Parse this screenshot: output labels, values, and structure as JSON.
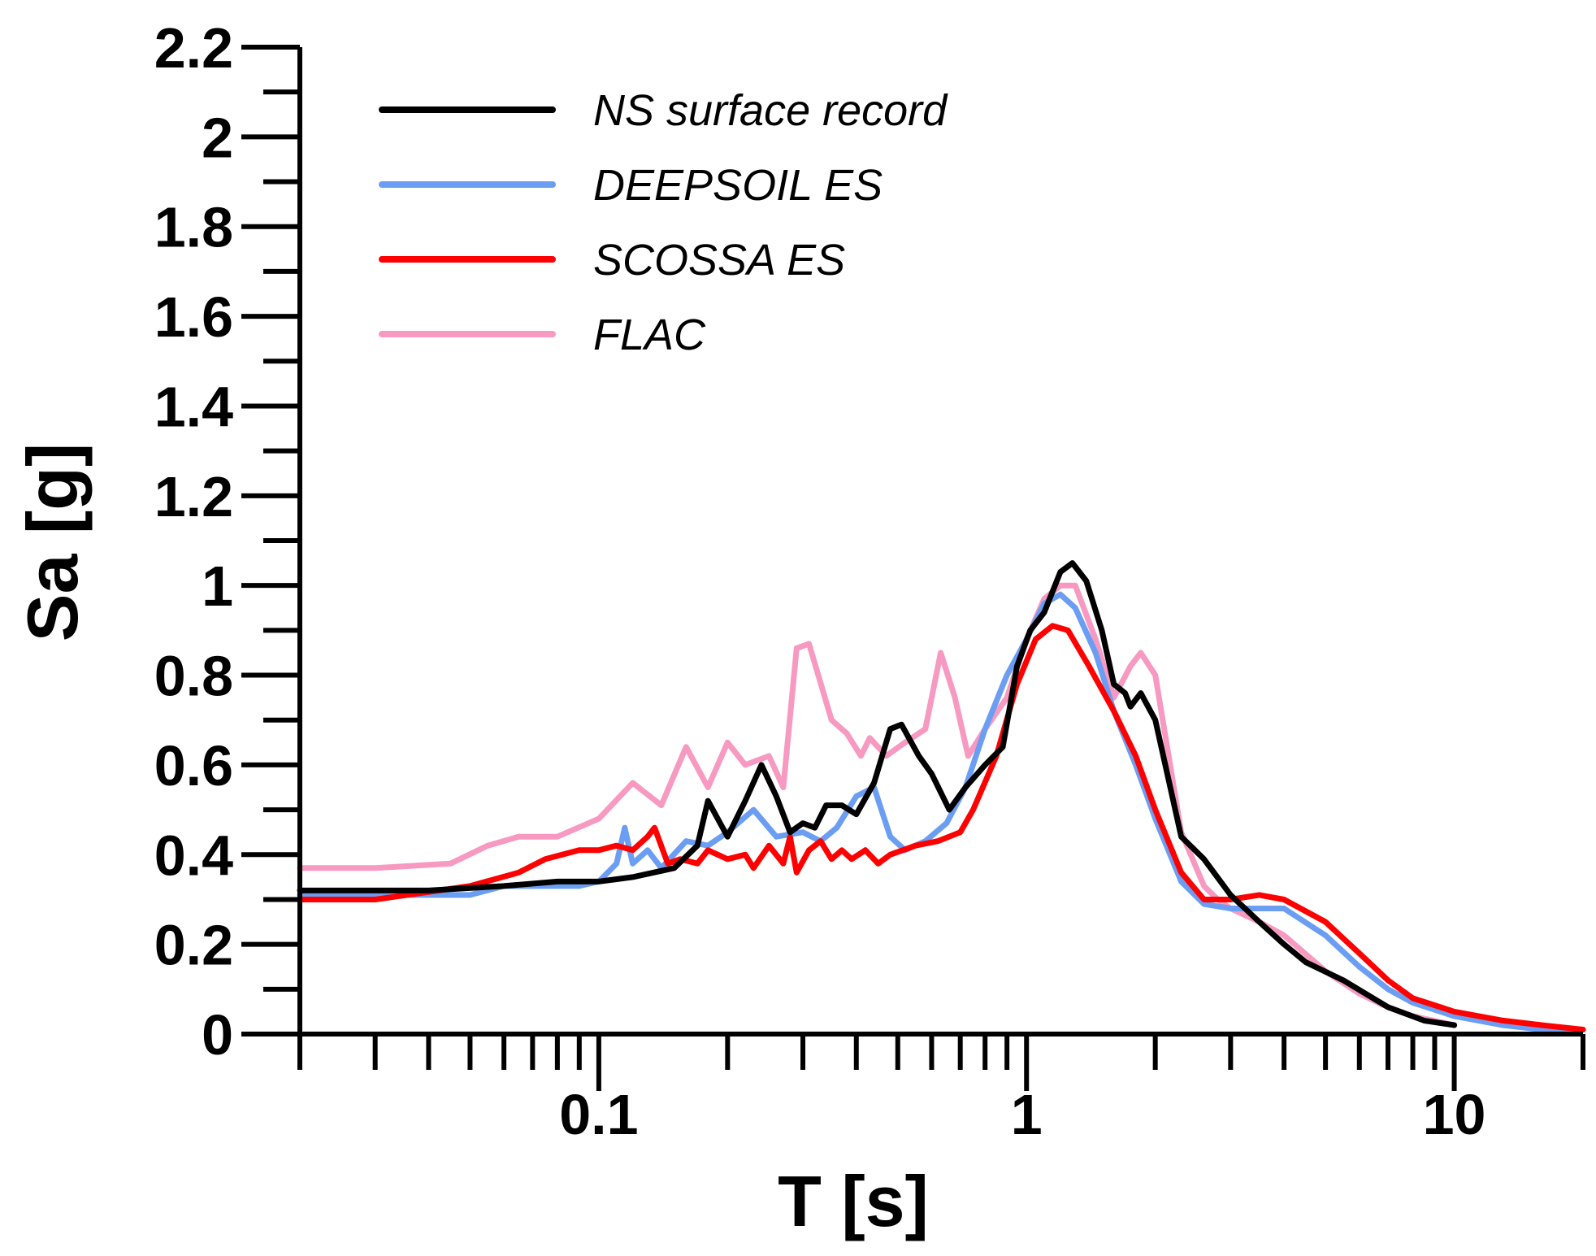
{
  "chart_data": {
    "type": "line",
    "title": "",
    "xlabel": "T [s]",
    "ylabel": "Sa [g]",
    "xscale": "log",
    "xlim": [
      0.02,
      20
    ],
    "ylim": [
      0,
      2.2
    ],
    "x_tick_labels": [
      {
        "value": 0.1,
        "label": "0.1"
      },
      {
        "value": 1,
        "label": "1"
      },
      {
        "value": 10,
        "label": "10"
      }
    ],
    "y_tick_labels": [
      {
        "value": 0,
        "label": "0"
      },
      {
        "value": 0.2,
        "label": "0.2"
      },
      {
        "value": 0.4,
        "label": "0.4"
      },
      {
        "value": 0.6,
        "label": "0.6"
      },
      {
        "value": 0.8,
        "label": "0.8"
      },
      {
        "value": 1,
        "label": "1"
      },
      {
        "value": 1.2,
        "label": "1.2"
      },
      {
        "value": 1.4,
        "label": "1.4"
      },
      {
        "value": 1.6,
        "label": "1.6"
      },
      {
        "value": 1.8,
        "label": "1.8"
      },
      {
        "value": 2,
        "label": "2"
      },
      {
        "value": 2.2,
        "label": "2.2"
      }
    ],
    "legend_position": "top-left",
    "series": [
      {
        "name": "FLAC",
        "color": "#f799c1",
        "points": [
          [
            0.02,
            0.37
          ],
          [
            0.03,
            0.37
          ],
          [
            0.045,
            0.38
          ],
          [
            0.055,
            0.42
          ],
          [
            0.065,
            0.44
          ],
          [
            0.08,
            0.44
          ],
          [
            0.1,
            0.48
          ],
          [
            0.12,
            0.56
          ],
          [
            0.14,
            0.51
          ],
          [
            0.16,
            0.64
          ],
          [
            0.18,
            0.55
          ],
          [
            0.2,
            0.65
          ],
          [
            0.22,
            0.6
          ],
          [
            0.25,
            0.62
          ],
          [
            0.27,
            0.55
          ],
          [
            0.29,
            0.86
          ],
          [
            0.31,
            0.87
          ],
          [
            0.35,
            0.7
          ],
          [
            0.38,
            0.67
          ],
          [
            0.41,
            0.62
          ],
          [
            0.43,
            0.66
          ],
          [
            0.47,
            0.62
          ],
          [
            0.52,
            0.65
          ],
          [
            0.58,
            0.68
          ],
          [
            0.63,
            0.85
          ],
          [
            0.68,
            0.75
          ],
          [
            0.73,
            0.62
          ],
          [
            0.8,
            0.68
          ],
          [
            0.9,
            0.75
          ],
          [
            1.0,
            0.88
          ],
          [
            1.1,
            0.97
          ],
          [
            1.2,
            1.0
          ],
          [
            1.3,
            1.0
          ],
          [
            1.45,
            0.88
          ],
          [
            1.6,
            0.75
          ],
          [
            1.75,
            0.82
          ],
          [
            1.85,
            0.85
          ],
          [
            2.0,
            0.8
          ],
          [
            2.3,
            0.45
          ],
          [
            2.6,
            0.33
          ],
          [
            2.8,
            0.3
          ],
          [
            3.0,
            0.28
          ],
          [
            3.5,
            0.25
          ],
          [
            4.0,
            0.22
          ],
          [
            5.0,
            0.14
          ],
          [
            6.0,
            0.09
          ],
          [
            7.0,
            0.06
          ],
          [
            8.0,
            0.04
          ],
          [
            10.0,
            0.02
          ]
        ]
      },
      {
        "name": "DEEPSOIL ES",
        "color": "#6b9ef3",
        "points": [
          [
            0.02,
            0.31
          ],
          [
            0.03,
            0.31
          ],
          [
            0.04,
            0.31
          ],
          [
            0.05,
            0.31
          ],
          [
            0.06,
            0.33
          ],
          [
            0.08,
            0.33
          ],
          [
            0.09,
            0.33
          ],
          [
            0.1,
            0.34
          ],
          [
            0.11,
            0.38
          ],
          [
            0.115,
            0.46
          ],
          [
            0.12,
            0.38
          ],
          [
            0.13,
            0.41
          ],
          [
            0.14,
            0.37
          ],
          [
            0.16,
            0.43
          ],
          [
            0.18,
            0.42
          ],
          [
            0.2,
            0.45
          ],
          [
            0.23,
            0.5
          ],
          [
            0.26,
            0.44
          ],
          [
            0.3,
            0.45
          ],
          [
            0.33,
            0.43
          ],
          [
            0.36,
            0.46
          ],
          [
            0.4,
            0.53
          ],
          [
            0.44,
            0.55
          ],
          [
            0.48,
            0.44
          ],
          [
            0.52,
            0.41
          ],
          [
            0.58,
            0.43
          ],
          [
            0.65,
            0.47
          ],
          [
            0.72,
            0.55
          ],
          [
            0.8,
            0.68
          ],
          [
            0.9,
            0.8
          ],
          [
            1.0,
            0.88
          ],
          [
            1.1,
            0.96
          ],
          [
            1.2,
            0.98
          ],
          [
            1.3,
            0.95
          ],
          [
            1.45,
            0.85
          ],
          [
            1.6,
            0.72
          ],
          [
            1.8,
            0.6
          ],
          [
            2.0,
            0.48
          ],
          [
            2.3,
            0.34
          ],
          [
            2.6,
            0.29
          ],
          [
            3.0,
            0.28
          ],
          [
            3.5,
            0.28
          ],
          [
            4.0,
            0.28
          ],
          [
            5.0,
            0.22
          ],
          [
            6.0,
            0.15
          ],
          [
            7.0,
            0.1
          ],
          [
            8.0,
            0.07
          ],
          [
            10.0,
            0.04
          ],
          [
            13.0,
            0.02
          ],
          [
            16.0,
            0.01
          ],
          [
            20.0,
            0.01
          ]
        ]
      },
      {
        "name": "SCOSSA ES",
        "color": "#ff0000",
        "points": [
          [
            0.02,
            0.3
          ],
          [
            0.03,
            0.3
          ],
          [
            0.05,
            0.33
          ],
          [
            0.065,
            0.36
          ],
          [
            0.075,
            0.39
          ],
          [
            0.09,
            0.41
          ],
          [
            0.1,
            0.41
          ],
          [
            0.11,
            0.42
          ],
          [
            0.12,
            0.41
          ],
          [
            0.13,
            0.44
          ],
          [
            0.135,
            0.46
          ],
          [
            0.145,
            0.38
          ],
          [
            0.155,
            0.39
          ],
          [
            0.17,
            0.38
          ],
          [
            0.18,
            0.41
          ],
          [
            0.2,
            0.39
          ],
          [
            0.22,
            0.4
          ],
          [
            0.23,
            0.37
          ],
          [
            0.25,
            0.42
          ],
          [
            0.27,
            0.38
          ],
          [
            0.28,
            0.44
          ],
          [
            0.29,
            0.36
          ],
          [
            0.31,
            0.41
          ],
          [
            0.33,
            0.43
          ],
          [
            0.35,
            0.39
          ],
          [
            0.37,
            0.41
          ],
          [
            0.39,
            0.39
          ],
          [
            0.42,
            0.41
          ],
          [
            0.45,
            0.38
          ],
          [
            0.48,
            0.4
          ],
          [
            0.55,
            0.42
          ],
          [
            0.62,
            0.43
          ],
          [
            0.7,
            0.45
          ],
          [
            0.75,
            0.5
          ],
          [
            0.85,
            0.62
          ],
          [
            0.95,
            0.78
          ],
          [
            1.05,
            0.88
          ],
          [
            1.15,
            0.91
          ],
          [
            1.25,
            0.9
          ],
          [
            1.4,
            0.82
          ],
          [
            1.6,
            0.72
          ],
          [
            1.8,
            0.62
          ],
          [
            2.0,
            0.5
          ],
          [
            2.3,
            0.36
          ],
          [
            2.6,
            0.3
          ],
          [
            3.0,
            0.3
          ],
          [
            3.5,
            0.31
          ],
          [
            4.0,
            0.3
          ],
          [
            5.0,
            0.25
          ],
          [
            6.0,
            0.18
          ],
          [
            7.0,
            0.12
          ],
          [
            8.0,
            0.08
          ],
          [
            10.0,
            0.05
          ],
          [
            13.0,
            0.03
          ],
          [
            16.0,
            0.02
          ],
          [
            20.0,
            0.01
          ]
        ]
      },
      {
        "name": "NS surface record",
        "color": "#000000",
        "points": [
          [
            0.02,
            0.32
          ],
          [
            0.04,
            0.32
          ],
          [
            0.06,
            0.33
          ],
          [
            0.08,
            0.34
          ],
          [
            0.1,
            0.34
          ],
          [
            0.12,
            0.35
          ],
          [
            0.15,
            0.37
          ],
          [
            0.17,
            0.42
          ],
          [
            0.18,
            0.52
          ],
          [
            0.2,
            0.44
          ],
          [
            0.22,
            0.52
          ],
          [
            0.24,
            0.6
          ],
          [
            0.26,
            0.53
          ],
          [
            0.28,
            0.45
          ],
          [
            0.3,
            0.47
          ],
          [
            0.32,
            0.46
          ],
          [
            0.34,
            0.51
          ],
          [
            0.37,
            0.51
          ],
          [
            0.4,
            0.49
          ],
          [
            0.44,
            0.56
          ],
          [
            0.48,
            0.68
          ],
          [
            0.51,
            0.69
          ],
          [
            0.56,
            0.62
          ],
          [
            0.6,
            0.58
          ],
          [
            0.66,
            0.5
          ],
          [
            0.72,
            0.55
          ],
          [
            0.8,
            0.6
          ],
          [
            0.88,
            0.64
          ],
          [
            0.95,
            0.82
          ],
          [
            1.02,
            0.9
          ],
          [
            1.1,
            0.94
          ],
          [
            1.2,
            1.03
          ],
          [
            1.28,
            1.05
          ],
          [
            1.38,
            1.01
          ],
          [
            1.5,
            0.9
          ],
          [
            1.6,
            0.78
          ],
          [
            1.7,
            0.76
          ],
          [
            1.75,
            0.73
          ],
          [
            1.85,
            0.76
          ],
          [
            2.0,
            0.7
          ],
          [
            2.3,
            0.44
          ],
          [
            2.6,
            0.39
          ],
          [
            3.0,
            0.31
          ],
          [
            3.5,
            0.25
          ],
          [
            4.0,
            0.2
          ],
          [
            4.5,
            0.16
          ],
          [
            5.5,
            0.12
          ],
          [
            7.0,
            0.06
          ],
          [
            8.5,
            0.03
          ],
          [
            10.0,
            0.02
          ]
        ]
      }
    ],
    "legend": [
      {
        "label": "NS surface record",
        "color": "#000000"
      },
      {
        "label": "DEEPSOIL ES",
        "color": "#6b9ef3"
      },
      {
        "label": "SCOSSA ES",
        "color": "#ff0000"
      },
      {
        "label": "FLAC",
        "color": "#f799c1"
      }
    ]
  }
}
